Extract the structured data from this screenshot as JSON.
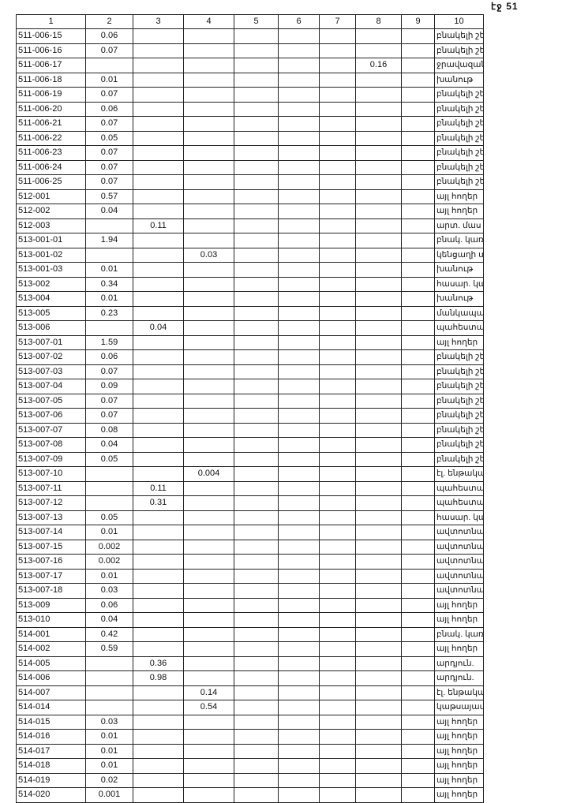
{
  "page_label": "էջ 51",
  "table": {
    "headers": [
      "1",
      "2",
      "3",
      "4",
      "5",
      "6",
      "7",
      "8",
      "9",
      "10"
    ],
    "rows": [
      [
        "511-006-15",
        "0.06",
        "",
        "",
        "",
        "",
        "",
        "",
        "",
        "բնակելի շենք"
      ],
      [
        "511-006-16",
        "0.07",
        "",
        "",
        "",
        "",
        "",
        "",
        "",
        "բնակելի շենք"
      ],
      [
        "511-006-17",
        "",
        "",
        "",
        "",
        "",
        "",
        "0.16",
        "",
        "ջրավազան"
      ],
      [
        "511-006-18",
        "0.01",
        "",
        "",
        "",
        "",
        "",
        "",
        "",
        "խանութ"
      ],
      [
        "511-006-19",
        "0.07",
        "",
        "",
        "",
        "",
        "",
        "",
        "",
        "բնակելի շենք"
      ],
      [
        "511-006-20",
        "0.06",
        "",
        "",
        "",
        "",
        "",
        "",
        "",
        "բնակելի շենք"
      ],
      [
        "511-006-21",
        "0.07",
        "",
        "",
        "",
        "",
        "",
        "",
        "",
        "բնակելի շենք"
      ],
      [
        "511-006-22",
        "0.05",
        "",
        "",
        "",
        "",
        "",
        "",
        "",
        "բնակելի շենք"
      ],
      [
        "511-006-23",
        "0.07",
        "",
        "",
        "",
        "",
        "",
        "",
        "",
        "բնակելի շենք"
      ],
      [
        "511-006-24",
        "0.07",
        "",
        "",
        "",
        "",
        "",
        "",
        "",
        "բնակելի շենք"
      ],
      [
        "511-006-25",
        "0.07",
        "",
        "",
        "",
        "",
        "",
        "",
        "",
        "բնակելի շենք"
      ],
      [
        "512-001",
        "0.57",
        "",
        "",
        "",
        "",
        "",
        "",
        "",
        "այլ հողեր"
      ],
      [
        "512-002",
        "0.04",
        "",
        "",
        "",
        "",
        "",
        "",
        "",
        "այլ հողեր"
      ],
      [
        "512-003",
        "",
        "0.11",
        "",
        "",
        "",
        "",
        "",
        "",
        "արտ. մաս"
      ],
      [
        "513-001-01",
        "1.94",
        "",
        "",
        "",
        "",
        "",
        "",
        "",
        "բնակ. կառ."
      ],
      [
        "513-001-02",
        "",
        "",
        "0.03",
        "",
        "",
        "",
        "",
        "",
        "կենցաղի տուն"
      ],
      [
        "513-001-03",
        "0.01",
        "",
        "",
        "",
        "",
        "",
        "",
        "",
        "խանութ"
      ],
      [
        "513-002",
        "0.34",
        "",
        "",
        "",
        "",
        "",
        "",
        "",
        "հասար. կառ."
      ],
      [
        "513-004",
        "0.01",
        "",
        "",
        "",
        "",
        "",
        "",
        "",
        "խանութ"
      ],
      [
        "513-005",
        "0.23",
        "",
        "",
        "",
        "",
        "",
        "",
        "",
        "մանկապարտեզ"
      ],
      [
        "513-006",
        "",
        "0.04",
        "",
        "",
        "",
        "",
        "",
        "",
        "պահեստարան"
      ],
      [
        "513-007-01",
        "1.59",
        "",
        "",
        "",
        "",
        "",
        "",
        "",
        "այլ հողեր"
      ],
      [
        "513-007-02",
        "0.06",
        "",
        "",
        "",
        "",
        "",
        "",
        "",
        "բնակելի շենք"
      ],
      [
        "513-007-03",
        "0.07",
        "",
        "",
        "",
        "",
        "",
        "",
        "",
        "բնակելի շենք"
      ],
      [
        "513-007-04",
        "0.09",
        "",
        "",
        "",
        "",
        "",
        "",
        "",
        "բնակելի շենք"
      ],
      [
        "513-007-05",
        "0.07",
        "",
        "",
        "",
        "",
        "",
        "",
        "",
        "բնակելի շենք"
      ],
      [
        "513-007-06",
        "0.07",
        "",
        "",
        "",
        "",
        "",
        "",
        "",
        "բնակելի շենք"
      ],
      [
        "513-007-07",
        "0.08",
        "",
        "",
        "",
        "",
        "",
        "",
        "",
        "բնակելի շենք"
      ],
      [
        "513-007-08",
        "0.04",
        "",
        "",
        "",
        "",
        "",
        "",
        "",
        "բնակելի շենք"
      ],
      [
        "513-007-09",
        "0.05",
        "",
        "",
        "",
        "",
        "",
        "",
        "",
        "բնակելի շենք"
      ],
      [
        "513-007-10",
        "",
        "",
        "0.004",
        "",
        "",
        "",
        "",
        "",
        "էլ. ենթակայան"
      ],
      [
        "513-007-11",
        "",
        "0.11",
        "",
        "",
        "",
        "",
        "",
        "",
        "պահեստարան"
      ],
      [
        "513-007-12",
        "",
        "0.31",
        "",
        "",
        "",
        "",
        "",
        "",
        "պահեստարան"
      ],
      [
        "513-007-13",
        "0.05",
        "",
        "",
        "",
        "",
        "",
        "",
        "",
        "հասար. կառ."
      ],
      [
        "513-007-14",
        "0.01",
        "",
        "",
        "",
        "",
        "",
        "",
        "",
        "ավտոտնակ"
      ],
      [
        "513-007-15",
        "0.002",
        "",
        "",
        "",
        "",
        "",
        "",
        "",
        "ավտոտնակ"
      ],
      [
        "513-007-16",
        "0.002",
        "",
        "",
        "",
        "",
        "",
        "",
        "",
        "ավտոտնակ"
      ],
      [
        "513-007-17",
        "0.01",
        "",
        "",
        "",
        "",
        "",
        "",
        "",
        "ավտոտնակ"
      ],
      [
        "513-007-18",
        "0.03",
        "",
        "",
        "",
        "",
        "",
        "",
        "",
        "ավտոտնակ"
      ],
      [
        "513-009",
        "0.06",
        "",
        "",
        "",
        "",
        "",
        "",
        "",
        "այլ հողեր"
      ],
      [
        "513-010",
        "0.04",
        "",
        "",
        "",
        "",
        "",
        "",
        "",
        "այլ հողեր"
      ],
      [
        "514-001",
        "0.42",
        "",
        "",
        "",
        "",
        "",
        "",
        "",
        "բնակ. կառ."
      ],
      [
        "514-002",
        "0.59",
        "",
        "",
        "",
        "",
        "",
        "",
        "",
        "այլ հողեր"
      ],
      [
        "514-005",
        "",
        "0.36",
        "",
        "",
        "",
        "",
        "",
        "",
        "արդյուն."
      ],
      [
        "514-006",
        "",
        "0.98",
        "",
        "",
        "",
        "",
        "",
        "",
        "արդյուն."
      ],
      [
        "514-007",
        "",
        "",
        "0.14",
        "",
        "",
        "",
        "",
        "",
        "էլ. ենթակայան"
      ],
      [
        "514-014",
        "",
        "",
        "0.54",
        "",
        "",
        "",
        "",
        "",
        "կաթսայատուն"
      ],
      [
        "514-015",
        "0.03",
        "",
        "",
        "",
        "",
        "",
        "",
        "",
        "այլ հողեր"
      ],
      [
        "514-016",
        "0.01",
        "",
        "",
        "",
        "",
        "",
        "",
        "",
        "այլ հողեր"
      ],
      [
        "514-017",
        "0.01",
        "",
        "",
        "",
        "",
        "",
        "",
        "",
        "այլ հողեր"
      ],
      [
        "514-018",
        "0.01",
        "",
        "",
        "",
        "",
        "",
        "",
        "",
        "այլ հողեր"
      ],
      [
        "514-019",
        "0.02",
        "",
        "",
        "",
        "",
        "",
        "",
        "",
        "այլ հողեր"
      ],
      [
        "514-020",
        "0.001",
        "",
        "",
        "",
        "",
        "",
        "",
        "",
        "այլ հողեր"
      ]
    ]
  }
}
